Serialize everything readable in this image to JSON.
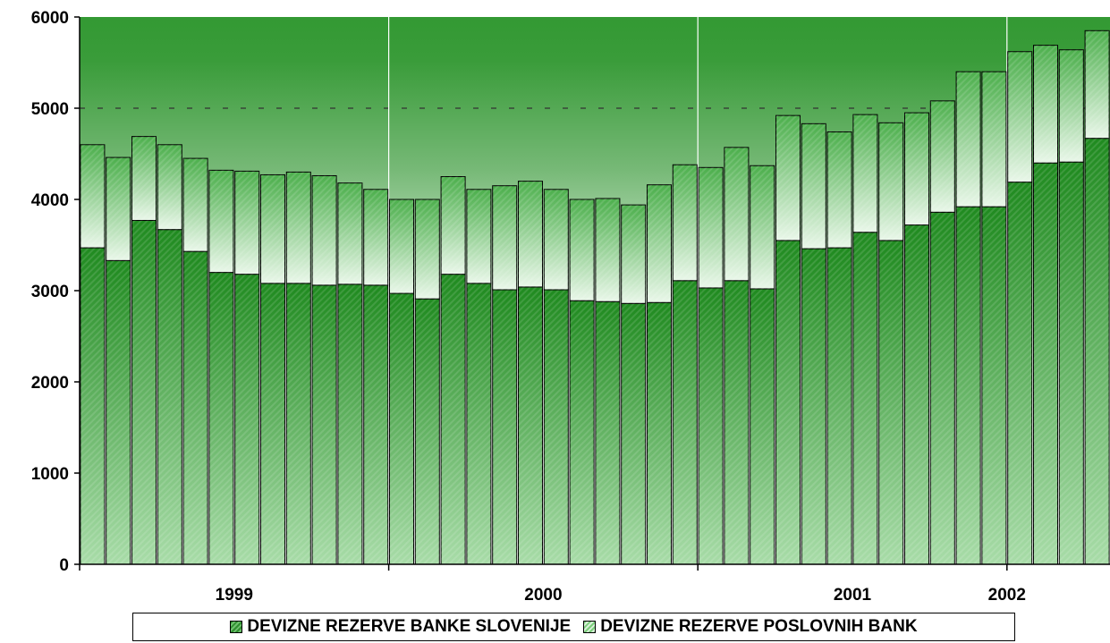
{
  "chart_data": {
    "type": "bar",
    "stacked": true,
    "y_ticks": [
      "0",
      "1000",
      "2000",
      "3000",
      "4000",
      "5000",
      "6000"
    ],
    "ylim": [
      0,
      6000
    ],
    "grid": "dashed line at 5000",
    "year_labels": [
      "1999",
      "2000",
      "2001",
      "2002"
    ],
    "year_label_bar_index": [
      6,
      18,
      30,
      36
    ],
    "year_separators_after_bar": [
      12,
      24,
      36
    ],
    "months_per_bar": 1,
    "series": [
      {
        "name": "DEVIZNE REZERVE BANKE SLOVENIJE",
        "color": "#2e8b2e",
        "values": [
          3470,
          3330,
          3770,
          3670,
          3430,
          3200,
          3180,
          3080,
          3080,
          3060,
          3070,
          3060,
          2970,
          2910,
          3180,
          3080,
          3010,
          3040,
          3010,
          2890,
          2880,
          2860,
          2870,
          3110,
          3030,
          3110,
          3020,
          3550,
          3460,
          3470,
          3640,
          3550,
          3720,
          3860,
          3920,
          3920,
          4190,
          4400,
          4410,
          4670
        ]
      },
      {
        "name": "DEVIZNE REZERVE POSLOVNIH BANK",
        "color": "#9fd89f",
        "values": [
          1130,
          1130,
          920,
          930,
          1020,
          1120,
          1130,
          1190,
          1220,
          1200,
          1110,
          1050,
          1030,
          1090,
          1070,
          1030,
          1140,
          1160,
          1100,
          1110,
          1130,
          1080,
          1290,
          1270,
          1320,
          1460,
          1350,
          1370,
          1370,
          1270,
          1290,
          1290,
          1230,
          1220,
          1480,
          1480,
          1430,
          1290,
          1230,
          1180
        ]
      }
    ],
    "legend": [
      "DEVIZNE REZERVE BANKE SLOVENIJE",
      "DEVIZNE REZERVE POSLOVNIH BANK"
    ],
    "legend_position": "bottom"
  }
}
